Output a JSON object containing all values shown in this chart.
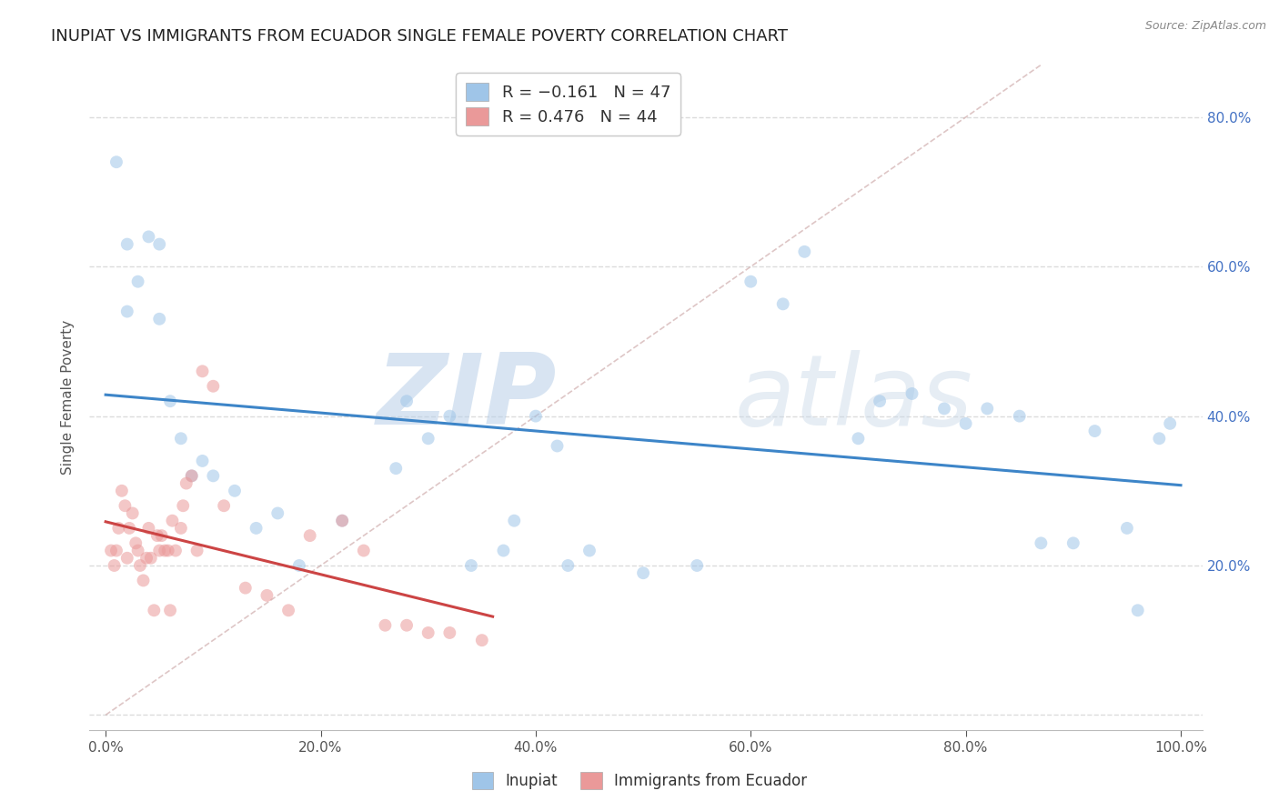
{
  "title": "INUPIAT VS IMMIGRANTS FROM ECUADOR SINGLE FEMALE POVERTY CORRELATION CHART",
  "source": "Source: ZipAtlas.com",
  "ylabel": "Single Female Poverty",
  "watermark_zip": "ZIP",
  "watermark_atlas": "atlas",
  "legend_labels": [
    "Inupiat",
    "Immigrants from Ecuador"
  ],
  "r_inupiat": -0.161,
  "n_inupiat": 47,
  "r_ecuador": 0.476,
  "n_ecuador": 44,
  "color_inupiat": "#9fc5e8",
  "color_ecuador": "#ea9999",
  "color_inupiat_line": "#3d85c8",
  "color_ecuador_line": "#cc4444",
  "inupiat_x": [
    0.01,
    0.02,
    0.02,
    0.03,
    0.04,
    0.05,
    0.05,
    0.06,
    0.07,
    0.08,
    0.09,
    0.1,
    0.12,
    0.14,
    0.16,
    0.18,
    0.22,
    0.27,
    0.28,
    0.3,
    0.32,
    0.34,
    0.37,
    0.38,
    0.4,
    0.42,
    0.43,
    0.45,
    0.5,
    0.55,
    0.6,
    0.63,
    0.65,
    0.7,
    0.72,
    0.75,
    0.78,
    0.8,
    0.82,
    0.85,
    0.87,
    0.9,
    0.92,
    0.95,
    0.96,
    0.98,
    0.99
  ],
  "inupiat_y": [
    0.74,
    0.63,
    0.54,
    0.58,
    0.64,
    0.63,
    0.53,
    0.42,
    0.37,
    0.32,
    0.34,
    0.32,
    0.3,
    0.25,
    0.27,
    0.2,
    0.26,
    0.33,
    0.42,
    0.37,
    0.4,
    0.2,
    0.22,
    0.26,
    0.4,
    0.36,
    0.2,
    0.22,
    0.19,
    0.2,
    0.58,
    0.55,
    0.62,
    0.37,
    0.42,
    0.43,
    0.41,
    0.39,
    0.41,
    0.4,
    0.23,
    0.23,
    0.38,
    0.25,
    0.14,
    0.37,
    0.39
  ],
  "ecuador_x": [
    0.005,
    0.008,
    0.01,
    0.012,
    0.015,
    0.018,
    0.02,
    0.022,
    0.025,
    0.028,
    0.03,
    0.032,
    0.035,
    0.038,
    0.04,
    0.042,
    0.045,
    0.048,
    0.05,
    0.052,
    0.055,
    0.058,
    0.06,
    0.062,
    0.065,
    0.07,
    0.072,
    0.075,
    0.08,
    0.085,
    0.09,
    0.1,
    0.11,
    0.13,
    0.15,
    0.17,
    0.19,
    0.22,
    0.24,
    0.26,
    0.28,
    0.3,
    0.32,
    0.35
  ],
  "ecuador_y": [
    0.22,
    0.2,
    0.22,
    0.25,
    0.3,
    0.28,
    0.21,
    0.25,
    0.27,
    0.23,
    0.22,
    0.2,
    0.18,
    0.21,
    0.25,
    0.21,
    0.14,
    0.24,
    0.22,
    0.24,
    0.22,
    0.22,
    0.14,
    0.26,
    0.22,
    0.25,
    0.28,
    0.31,
    0.32,
    0.22,
    0.46,
    0.44,
    0.28,
    0.17,
    0.16,
    0.14,
    0.24,
    0.26,
    0.22,
    0.12,
    0.12,
    0.11,
    0.11,
    0.1
  ],
  "xlim": [
    0.0,
    1.0
  ],
  "ylim": [
    0.0,
    0.87
  ],
  "xtick_vals": [
    0.0,
    0.2,
    0.4,
    0.6,
    0.8,
    1.0
  ],
  "xtick_labels": [
    "0.0%",
    "20.0%",
    "40.0%",
    "60.0%",
    "80.0%",
    "100.0%"
  ],
  "ytick_vals": [
    0.0,
    0.2,
    0.4,
    0.6,
    0.8
  ],
  "ytick_labels_right": [
    "20.0%",
    "40.0%",
    "60.0%",
    "80.0%"
  ],
  "background_color": "#ffffff",
  "grid_color": "#cccccc",
  "title_fontsize": 13,
  "axis_label_fontsize": 11,
  "tick_fontsize": 11,
  "marker_size": 100,
  "marker_alpha": 0.55
}
